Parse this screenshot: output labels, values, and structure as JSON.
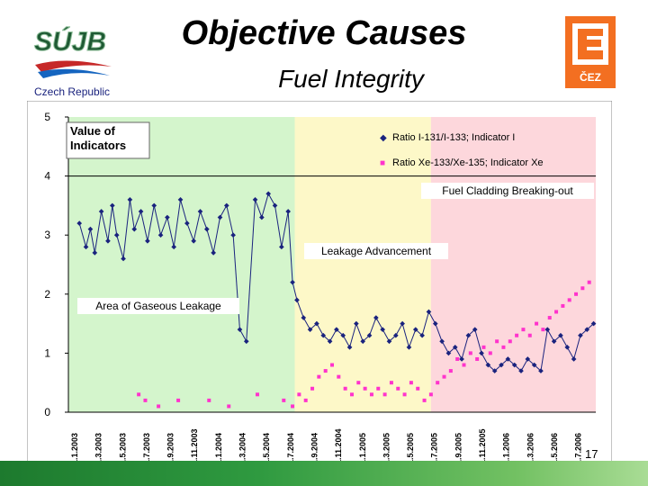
{
  "header": {
    "title": "Objective Causes",
    "subtitle": "Fuel Integrity",
    "logo_suj": "SÚJB",
    "logo_country": "Czech Republic",
    "logo_cez": "ČEZ"
  },
  "page_number": "17",
  "colors": {
    "green_zone": "#d4f5cc",
    "yellow_zone": "#fdf8c8",
    "pink_zone": "#fdd7dc",
    "indicator_i": "#1a237e",
    "indicator_xe": "#ff33cc",
    "footer_green": "#1d7a2e"
  },
  "chart_data": {
    "type": "scatter",
    "ylim": [
      0,
      5
    ],
    "yticks": [
      "0",
      "1",
      "2",
      "3",
      "4",
      "5"
    ],
    "xlim": [
      0,
      24
    ],
    "x_labels": [
      "1.1.2003",
      "1.3.2003",
      "1.5.2003",
      "1.7.2003",
      "1.9.2003",
      "1.11.2003",
      "1.1.2004",
      "1.3.2004",
      "1.5.2004",
      "1.7.2004",
      "1.9.2004",
      "1.11.2004",
      "1.1.2005",
      "1.3.2005",
      "1.5.2005",
      "1.7.2005",
      "1.9.2005",
      "1.11.2005",
      "1.1.2006",
      "1.3.2006",
      "1.5.2006",
      "1.7.2006"
    ],
    "zones": [
      {
        "name": "green",
        "x0": 0,
        "x1": 10.3
      },
      {
        "name": "yellow",
        "x0": 10.3,
        "x1": 16.5
      },
      {
        "name": "pink",
        "x0": 16.5,
        "x1": 24
      }
    ],
    "threshold_y": 4,
    "annotations": {
      "value_of_indicators": "Value of Indicators",
      "fuel_cladding": "Fuel Cladding Breaking-out",
      "leakage_advancement": "Leakage Advancement",
      "gaseous_leakage": "Area of Gaseous Leakage"
    },
    "series": [
      {
        "name": "Ratio I-131/I-133; Indicator I",
        "color": "#1a237e",
        "points": [
          [
            0.5,
            3.2
          ],
          [
            0.8,
            2.8
          ],
          [
            1.0,
            3.1
          ],
          [
            1.2,
            2.7
          ],
          [
            1.5,
            3.4
          ],
          [
            1.8,
            2.9
          ],
          [
            2.0,
            3.5
          ],
          [
            2.2,
            3.0
          ],
          [
            2.5,
            2.6
          ],
          [
            2.8,
            3.6
          ],
          [
            3.0,
            3.1
          ],
          [
            3.3,
            3.4
          ],
          [
            3.6,
            2.9
          ],
          [
            3.9,
            3.5
          ],
          [
            4.2,
            3.0
          ],
          [
            4.5,
            3.3
          ],
          [
            4.8,
            2.8
          ],
          [
            5.1,
            3.6
          ],
          [
            5.4,
            3.2
          ],
          [
            5.7,
            2.9
          ],
          [
            6.0,
            3.4
          ],
          [
            6.3,
            3.1
          ],
          [
            6.6,
            2.7
          ],
          [
            6.9,
            3.3
          ],
          [
            7.2,
            3.5
          ],
          [
            7.5,
            3.0
          ],
          [
            7.8,
            1.4
          ],
          [
            8.1,
            1.2
          ],
          [
            8.5,
            3.6
          ],
          [
            8.8,
            3.3
          ],
          [
            9.1,
            3.7
          ],
          [
            9.4,
            3.5
          ],
          [
            9.7,
            2.8
          ],
          [
            10.0,
            3.4
          ],
          [
            10.2,
            2.2
          ],
          [
            10.4,
            1.9
          ],
          [
            10.7,
            1.6
          ],
          [
            11.0,
            1.4
          ],
          [
            11.3,
            1.5
          ],
          [
            11.6,
            1.3
          ],
          [
            11.9,
            1.2
          ],
          [
            12.2,
            1.4
          ],
          [
            12.5,
            1.3
          ],
          [
            12.8,
            1.1
          ],
          [
            13.1,
            1.5
          ],
          [
            13.4,
            1.2
          ],
          [
            13.7,
            1.3
          ],
          [
            14.0,
            1.6
          ],
          [
            14.3,
            1.4
          ],
          [
            14.6,
            1.2
          ],
          [
            14.9,
            1.3
          ],
          [
            15.2,
            1.5
          ],
          [
            15.5,
            1.1
          ],
          [
            15.8,
            1.4
          ],
          [
            16.1,
            1.3
          ],
          [
            16.4,
            1.7
          ],
          [
            16.7,
            1.5
          ],
          [
            17.0,
            1.2
          ],
          [
            17.3,
            1.0
          ],
          [
            17.6,
            1.1
          ],
          [
            17.9,
            0.9
          ],
          [
            18.2,
            1.3
          ],
          [
            18.5,
            1.4
          ],
          [
            18.8,
            1.0
          ],
          [
            19.1,
            0.8
          ],
          [
            19.4,
            0.7
          ],
          [
            19.7,
            0.8
          ],
          [
            20.0,
            0.9
          ],
          [
            20.3,
            0.8
          ],
          [
            20.6,
            0.7
          ],
          [
            20.9,
            0.9
          ],
          [
            21.2,
            0.8
          ],
          [
            21.5,
            0.7
          ],
          [
            21.8,
            1.4
          ],
          [
            22.1,
            1.2
          ],
          [
            22.4,
            1.3
          ],
          [
            22.7,
            1.1
          ],
          [
            23.0,
            0.9
          ],
          [
            23.3,
            1.3
          ],
          [
            23.6,
            1.4
          ],
          [
            23.9,
            1.5
          ]
        ]
      },
      {
        "name": "Ratio Xe-133/Xe-135; Indicator Xe",
        "color": "#ff33cc",
        "points": [
          [
            3.2,
            0.3
          ],
          [
            3.5,
            0.2
          ],
          [
            4.1,
            0.1
          ],
          [
            5.0,
            0.2
          ],
          [
            6.4,
            0.2
          ],
          [
            7.3,
            0.1
          ],
          [
            8.6,
            0.3
          ],
          [
            9.8,
            0.2
          ],
          [
            10.2,
            0.1
          ],
          [
            10.5,
            0.3
          ],
          [
            10.8,
            0.2
          ],
          [
            11.1,
            0.4
          ],
          [
            11.4,
            0.6
          ],
          [
            11.7,
            0.7
          ],
          [
            12.0,
            0.8
          ],
          [
            12.3,
            0.6
          ],
          [
            12.6,
            0.4
          ],
          [
            12.9,
            0.3
          ],
          [
            13.2,
            0.5
          ],
          [
            13.5,
            0.4
          ],
          [
            13.8,
            0.3
          ],
          [
            14.1,
            0.4
          ],
          [
            14.4,
            0.3
          ],
          [
            14.7,
            0.5
          ],
          [
            15.0,
            0.4
          ],
          [
            15.3,
            0.3
          ],
          [
            15.6,
            0.5
          ],
          [
            15.9,
            0.4
          ],
          [
            16.2,
            0.2
          ],
          [
            16.5,
            0.3
          ],
          [
            16.8,
            0.5
          ],
          [
            17.1,
            0.6
          ],
          [
            17.4,
            0.7
          ],
          [
            17.7,
            0.9
          ],
          [
            18.0,
            0.8
          ],
          [
            18.3,
            1.0
          ],
          [
            18.6,
            0.9
          ],
          [
            18.9,
            1.1
          ],
          [
            19.2,
            1.0
          ],
          [
            19.5,
            1.2
          ],
          [
            19.8,
            1.1
          ],
          [
            20.1,
            1.2
          ],
          [
            20.4,
            1.3
          ],
          [
            20.7,
            1.4
          ],
          [
            21.0,
            1.3
          ],
          [
            21.3,
            1.5
          ],
          [
            21.6,
            1.4
          ],
          [
            21.9,
            1.6
          ],
          [
            22.2,
            1.7
          ],
          [
            22.5,
            1.8
          ],
          [
            22.8,
            1.9
          ],
          [
            23.1,
            2.0
          ],
          [
            23.4,
            2.1
          ],
          [
            23.7,
            2.2
          ]
        ]
      }
    ]
  }
}
